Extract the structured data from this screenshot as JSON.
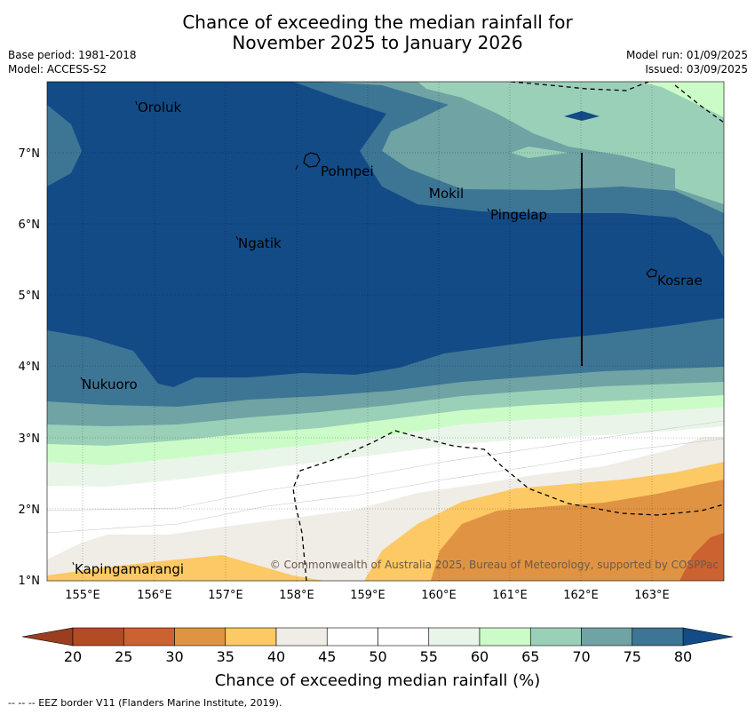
{
  "header": {
    "title_line1": "Chance of exceeding the median rainfall for",
    "title_line2": "November 2025 to January 2026",
    "base_period": "Base period: 1981-2018",
    "model": "Model: ACCESS-S2",
    "model_run": "Model run: 01/09/2025",
    "issued": "Issued: 03/09/2025"
  },
  "map": {
    "lon_range": [
      154.5,
      164.0
    ],
    "lat_range": [
      1.0,
      8.0
    ],
    "lon_ticks": [
      "155°E",
      "156°E",
      "157°E",
      "158°E",
      "159°E",
      "160°E",
      "161°E",
      "162°E",
      "163°E"
    ],
    "lat_ticks": [
      "1°N",
      "2°N",
      "3°N",
      "4°N",
      "5°N",
      "6°N",
      "7°N"
    ],
    "places": [
      {
        "name": "Oroluk",
        "lon": 155.6,
        "lat": 7.65
      },
      {
        "name": "Pohnpei",
        "lon": 158.2,
        "lat": 6.87
      },
      {
        "name": "Mokil",
        "lon": 159.8,
        "lat": 6.68
      },
      {
        "name": "Pingelap",
        "lon": 160.7,
        "lat": 6.21
      },
      {
        "name": "Ngatik",
        "lon": 157.1,
        "lat": 5.8
      },
      {
        "name": "Kosrae",
        "lon": 162.98,
        "lat": 5.32
      },
      {
        "name": "Nukuoro",
        "lon": 154.9,
        "lat": 3.85
      },
      {
        "name": "Kapingamarangi",
        "lon": 154.8,
        "lat": 1.07
      }
    ],
    "copyright": "© Commonwealth of Australia 2025, Bureau of Meteorology, supported by COSPPac"
  },
  "colorbar": {
    "label": "Chance of exceeding median rainfall (%)",
    "ticks": [
      "20",
      "25",
      "30",
      "35",
      "40",
      "45",
      "50",
      "55",
      "60",
      "65",
      "70",
      "75",
      "80"
    ],
    "colors": [
      "#b34b25",
      "#cc6230",
      "#e09443",
      "#fdc964",
      "#f0ece6",
      "#ffffff",
      "#ffffff",
      "#eaf5e9",
      "#cbfcc7",
      "#9bd0b8",
      "#6fa3a4",
      "#3d7595"
    ],
    "under_color": "#9a3e1f",
    "over_color": "#134b87"
  },
  "footnote": "--  --  -- EEZ border V11 (Flanders Marine Institute, 2019)."
}
